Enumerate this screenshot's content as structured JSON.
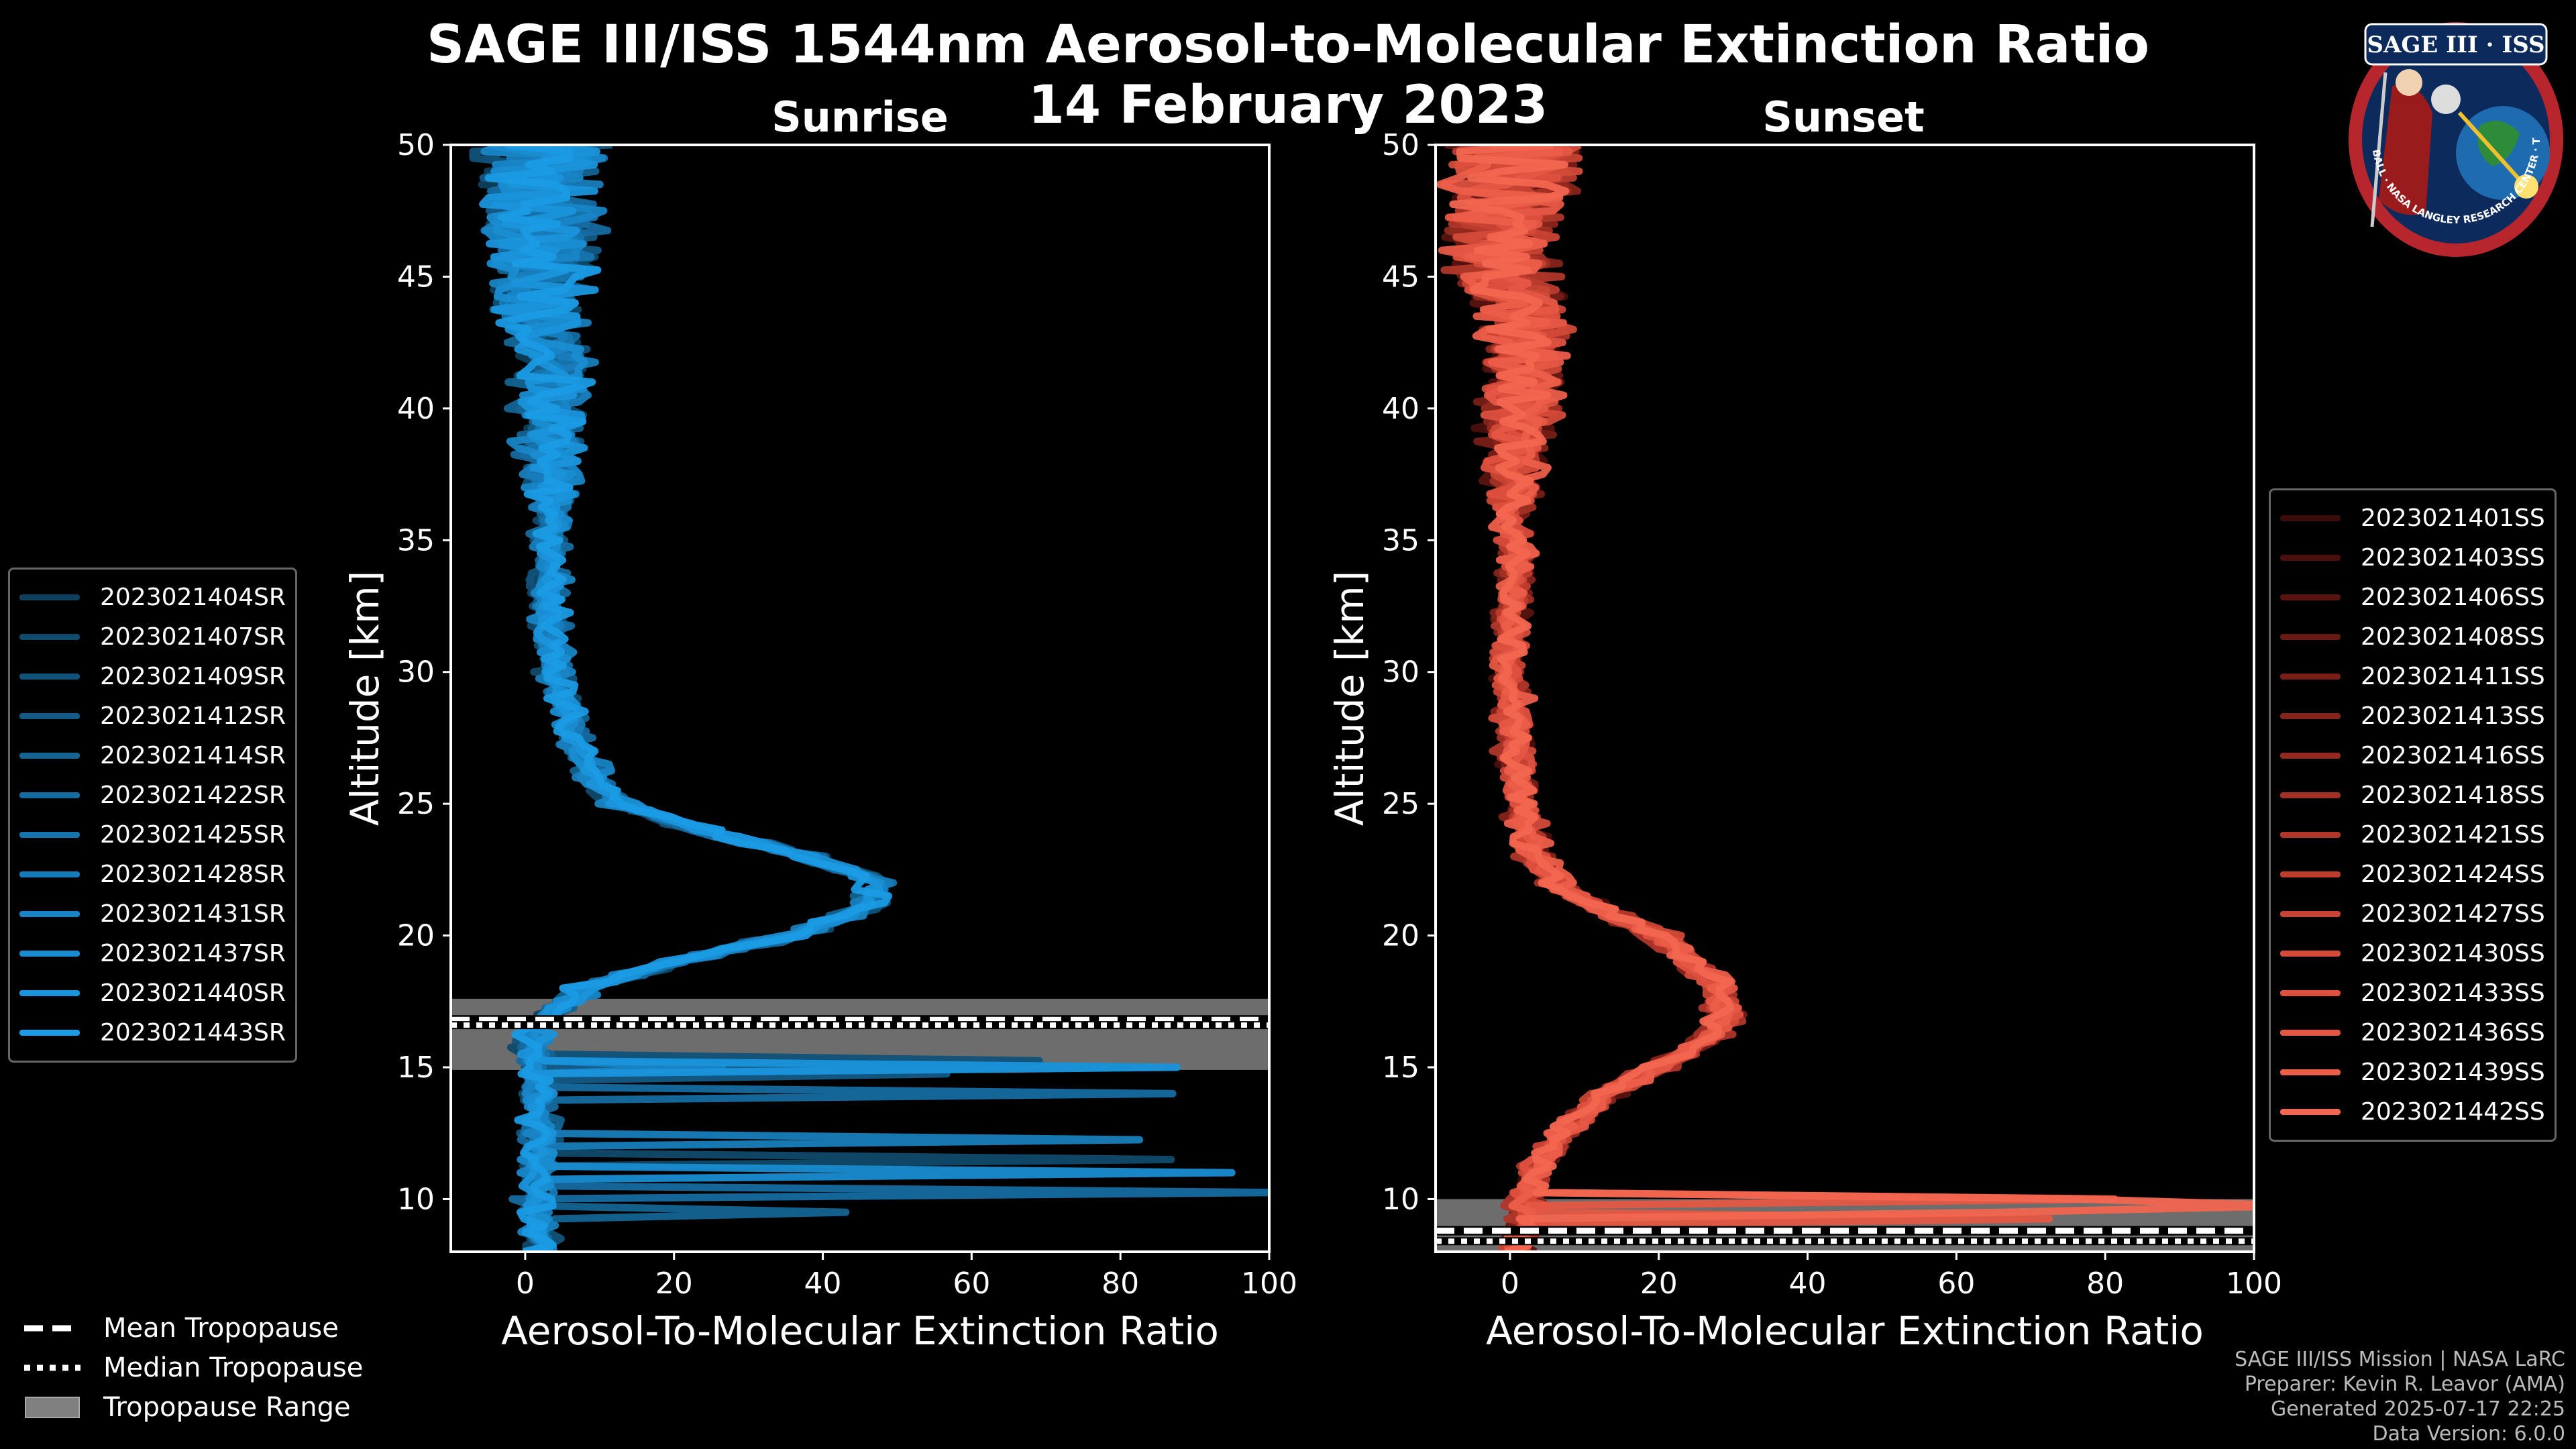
{
  "title_line1": "SAGE III/ISS 1544nm Aerosol-to-Molecular Extinction Ratio",
  "title_line2": "14 February 2023",
  "logo": {
    "text": "SAGE III · ISS",
    "ring_text": "BALL · NASA LANGLEY RESEARCH CENTER · TAS-I · ESA"
  },
  "chart_data": [
    {
      "type": "line",
      "title": "Sunrise",
      "xlabel": "Aerosol-To-Molecular Extinction Ratio",
      "ylabel": "Altitude [km]",
      "xlim": [
        -10,
        100
      ],
      "ylim": [
        8,
        50
      ],
      "xticks": [
        0,
        20,
        40,
        60,
        80,
        100
      ],
      "yticks": [
        10,
        15,
        20,
        25,
        30,
        35,
        40,
        45,
        50
      ],
      "tropopause": {
        "mean": 16.8,
        "median": 16.6,
        "range": [
          14.9,
          17.6
        ]
      },
      "profile_shape": {
        "altitudes": [
          8,
          10,
          12,
          14,
          15,
          16,
          17,
          18,
          19,
          20,
          21,
          22,
          23,
          24,
          25,
          26,
          27,
          28,
          30,
          32,
          34,
          36,
          38,
          40,
          42,
          44,
          46,
          48,
          50
        ],
        "values": [
          2,
          1.5,
          2,
          2,
          1.5,
          1,
          3,
          8,
          20,
          36,
          45,
          48,
          38,
          24,
          13,
          9,
          7,
          6,
          4,
          3,
          3,
          4,
          4,
          3,
          4,
          2,
          3,
          2,
          3
        ]
      },
      "series": [
        {
          "name": "2023021404SR",
          "color": "#0e3f5c"
        },
        {
          "name": "2023021407SR",
          "color": "#104a6c"
        },
        {
          "name": "2023021409SR",
          "color": "#11527a"
        },
        {
          "name": "2023021412SR",
          "color": "#135b87"
        },
        {
          "name": "2023021414SR",
          "color": "#146494"
        },
        {
          "name": "2023021422SR",
          "color": "#156ca1"
        },
        {
          "name": "2023021425SR",
          "color": "#1675ae"
        },
        {
          "name": "2023021428SR",
          "color": "#177dba"
        },
        {
          "name": "2023021431SR",
          "color": "#1885c6"
        },
        {
          "name": "2023021437SR",
          "color": "#198dd1"
        },
        {
          "name": "2023021440SR",
          "color": "#1a94db"
        },
        {
          "name": "2023021443SR",
          "color": "#1a9be4"
        }
      ]
    },
    {
      "type": "line",
      "title": "Sunset",
      "xlabel": "Aerosol-To-Molecular Extinction Ratio",
      "ylabel": "Altitude [km]",
      "xlim": [
        -10,
        100
      ],
      "ylim": [
        8,
        50
      ],
      "xticks": [
        0,
        20,
        40,
        60,
        80,
        100
      ],
      "yticks": [
        10,
        15,
        20,
        25,
        30,
        35,
        40,
        45,
        50
      ],
      "tropopause": {
        "mean": 8.8,
        "median": 8.4,
        "range": [
          8.0,
          10.0
        ]
      },
      "profile_shape": {
        "altitudes": [
          8,
          9,
          10,
          11,
          12,
          13,
          14,
          15,
          16,
          17,
          18,
          19,
          20,
          21,
          22,
          23,
          24,
          26,
          28,
          30,
          32,
          34,
          36,
          38,
          40,
          42,
          44,
          46,
          48,
          50
        ],
        "values": [
          1,
          2,
          2,
          3,
          6,
          9,
          13,
          20,
          26,
          29,
          28,
          24,
          20,
          12,
          6,
          3,
          2,
          1,
          0.5,
          0,
          0,
          1,
          0,
          0.5,
          1,
          2,
          1,
          -2,
          0,
          1
        ]
      },
      "series": [
        {
          "name": "2023021401SS",
          "color": "#3a0c0a"
        },
        {
          "name": "2023021403SS",
          "color": "#4a100d"
        },
        {
          "name": "2023021406SS",
          "color": "#591410"
        },
        {
          "name": "2023021408SS",
          "color": "#681913"
        },
        {
          "name": "2023021411SS",
          "color": "#771e17"
        },
        {
          "name": "2023021413SS",
          "color": "#86241b"
        },
        {
          "name": "2023021416SS",
          "color": "#942a1f"
        },
        {
          "name": "2023021418SS",
          "color": "#a23024"
        },
        {
          "name": "2023021421SS",
          "color": "#af3629"
        },
        {
          "name": "2023021424SS",
          "color": "#bc3c2e"
        },
        {
          "name": "2023021427SS",
          "color": "#c84333"
        },
        {
          "name": "2023021430SS",
          "color": "#d34a38"
        },
        {
          "name": "2023021433SS",
          "color": "#dd503e"
        },
        {
          "name": "2023021436SS",
          "color": "#e55744"
        },
        {
          "name": "2023021439SS",
          "color": "#ec5e4a"
        },
        {
          "name": "2023021442SS",
          "color": "#f26650"
        }
      ]
    }
  ],
  "legend_bottom": {
    "mean": "Mean Tropopause",
    "median": "Median Tropopause",
    "range": "Tropopause Range"
  },
  "credits": {
    "line1": "SAGE III/ISS Mission | NASA LaRC",
    "line2": "Preparer: Kevin R. Leavor (AMA)",
    "line3": "Generated 2025-07-17 22:25",
    "line4": "Data Version: 6.0.0"
  }
}
